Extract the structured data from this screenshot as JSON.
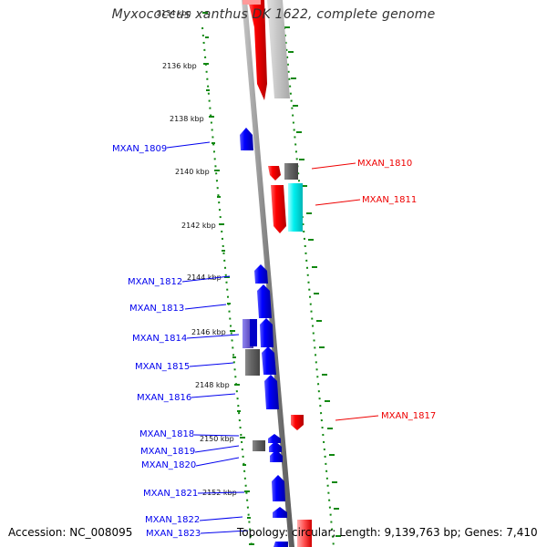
{
  "title": "Myxococcus xanthus DK 1622, complete genome",
  "footer": {
    "accession": "Accession: NC_008095",
    "summary": "Topology: circular; Length: 9,139,763 bp; Genes: 7,410"
  },
  "ticks": [
    "2134 kbp",
    "2136 kbp",
    "2138 kbp",
    "2140 kbp",
    "2142 kbp",
    "2144 kbp",
    "2146 kbp",
    "2148 kbp",
    "2150 kbp",
    "2152 kbp"
  ],
  "genes_left": [
    "MXAN_1809",
    "MXAN_1812",
    "MXAN_1813",
    "MXAN_1814",
    "MXAN_1815",
    "MXAN_1816",
    "MXAN_1818",
    "MXAN_1819",
    "MXAN_1820",
    "MXAN_1821",
    "MXAN_1822",
    "MXAN_1823"
  ],
  "genes_right": [
    "MXAN_1810",
    "MXAN_1811",
    "MXAN_1817"
  ],
  "colors": {
    "forward_gene": "#0000ee",
    "reverse_gene": "#ee0000",
    "backbone": "#888888",
    "tick": "#118811",
    "pseudo": "#555555",
    "other": "#00e0e0",
    "faded_red": "#f5a3a3",
    "faded_grey": "#c8c8c8",
    "faded_blue": "#6a5acd"
  }
}
